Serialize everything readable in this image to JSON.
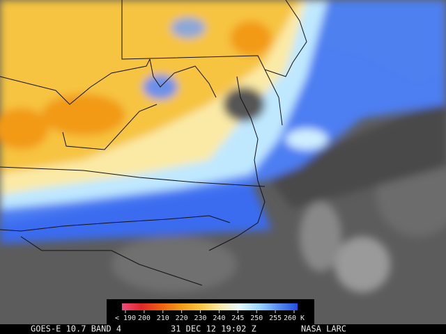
{
  "colorbar": {
    "ticks": [
      {
        "value": 190,
        "label": "< 190"
      },
      200,
      210,
      220,
      230,
      240,
      245,
      250,
      255,
      {
        "value": 260,
        "label": "260 K"
      }
    ],
    "colors": [
      "#f04a7a",
      "#e02828",
      "#ee6010",
      "#f29a18",
      "#f6c440",
      "#fbeaa6",
      "#e8fbff",
      "#9fd8ff",
      "#5a8ff0",
      "#1f4fe0"
    ]
  },
  "footer": {
    "satellite": "GOES-E 10.7 BAND 4",
    "time": "31 DEC 12 19:02 Z",
    "source": "NASA LARC"
  }
}
